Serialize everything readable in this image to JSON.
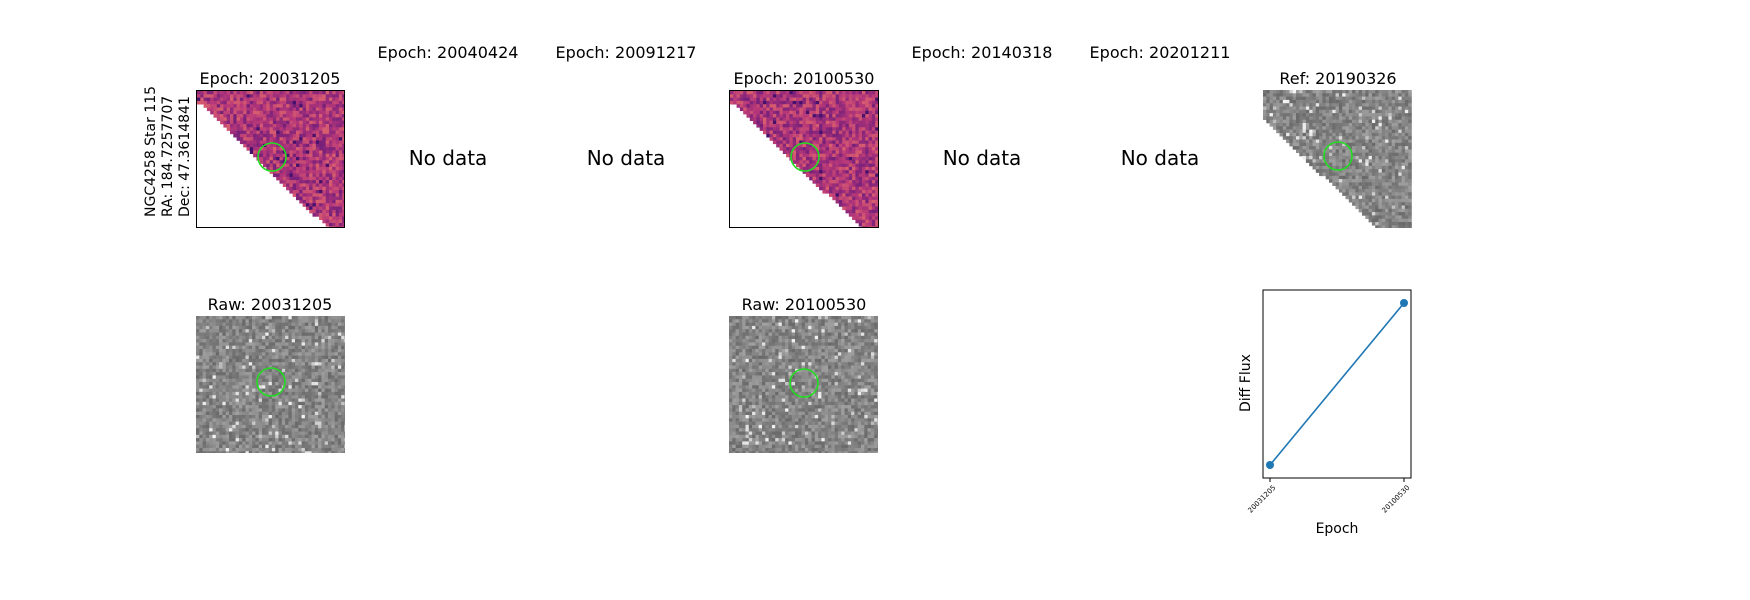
{
  "target": {
    "name": "NGC4258 Star 115",
    "ra_label": "RA: 184.7257707",
    "dec_label": "Dec: 47.3614841"
  },
  "epochs": [
    {
      "title": "Epoch: 20031205",
      "status": "image"
    },
    {
      "title": "Epoch: 20040424",
      "status": "No data"
    },
    {
      "title": "Epoch: 20091217",
      "status": "No data"
    },
    {
      "title": "Epoch: 20100530",
      "status": "image"
    },
    {
      "title": "Epoch: 20140318",
      "status": "No data"
    },
    {
      "title": "Epoch: 20201211",
      "status": "No data"
    }
  ],
  "reference": {
    "title": "Ref: 20190326"
  },
  "raw": [
    {
      "title": "Raw: 20031205"
    },
    {
      "title": "Raw: 20100530"
    }
  ],
  "chart_data": {
    "type": "line",
    "title": "",
    "xlabel": "Epoch",
    "ylabel": "Diff Flux",
    "categories": [
      "20031205",
      "20100530"
    ],
    "series": [
      {
        "name": "Diff Flux",
        "values": [
          0.0,
          1.0
        ],
        "color": "#1f77b4"
      }
    ],
    "y_ticks_shown": false
  },
  "colors": {
    "aperture": "#22dd22",
    "series": "#1f77b4"
  }
}
